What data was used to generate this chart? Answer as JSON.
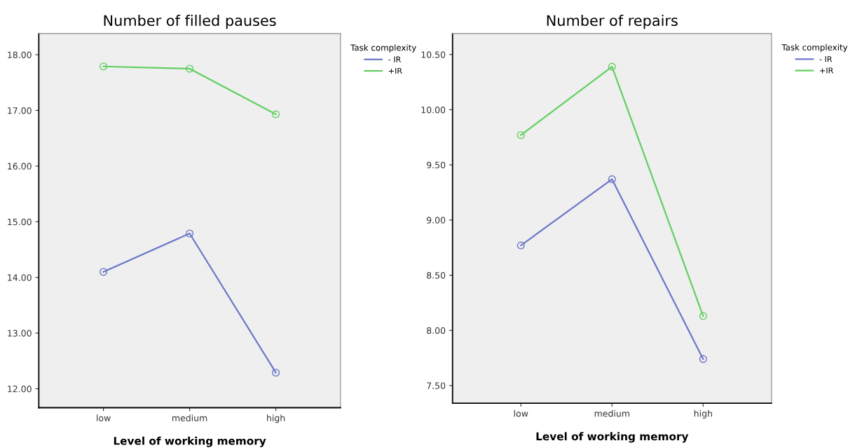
{
  "chart_data": [
    {
      "type": "line",
      "title": "Number of filled pauses",
      "xlabel": "Level of working memory",
      "legend_title": "Task complexity",
      "legend": "right",
      "marker": "circle",
      "line_style": "solid",
      "grid": false,
      "categories": [
        "low",
        "medium",
        "high"
      ],
      "ylim": [
        11.66,
        18.38
      ],
      "yticks": [
        {
          "value": 12,
          "label": "12.00"
        },
        {
          "value": 13,
          "label": "13.00"
        },
        {
          "value": 14,
          "label": "14.00"
        },
        {
          "value": 15,
          "label": "15.00"
        },
        {
          "value": 16,
          "label": "16.00"
        },
        {
          "value": 17,
          "label": "17.00"
        },
        {
          "value": 18,
          "label": "18.00"
        }
      ],
      "series": [
        {
          "name": "- IR",
          "color": "#6b77c9",
          "values": [
            14.1,
            14.79,
            12.29
          ]
        },
        {
          "name": "+IR",
          "color": "#62cf62",
          "values": [
            17.79,
            17.75,
            16.93
          ]
        }
      ]
    },
    {
      "type": "line",
      "title": "Number of repairs",
      "xlabel": "Level of working memory",
      "legend_title": "Task complexity",
      "legend": "right",
      "marker": "circle",
      "line_style": "solid",
      "grid": false,
      "categories": [
        "low",
        "medium",
        "high"
      ],
      "ylim": [
        7.34,
        10.69
      ],
      "yticks": [
        {
          "value": 7.5,
          "label": "7.50"
        },
        {
          "value": 8,
          "label": "8.00"
        },
        {
          "value": 8.5,
          "label": "8.50"
        },
        {
          "value": 9,
          "label": "9.00"
        },
        {
          "value": 9.5,
          "label": "9.50"
        },
        {
          "value": 10,
          "label": "10.00"
        },
        {
          "value": 10.5,
          "label": "10.50"
        }
      ],
      "series": [
        {
          "name": "- IR",
          "color": "#6b77c9",
          "values": [
            8.77,
            9.37,
            7.74
          ]
        },
        {
          "name": "+IR",
          "color": "#62cf62",
          "values": [
            9.77,
            10.39,
            8.13
          ]
        }
      ]
    }
  ]
}
